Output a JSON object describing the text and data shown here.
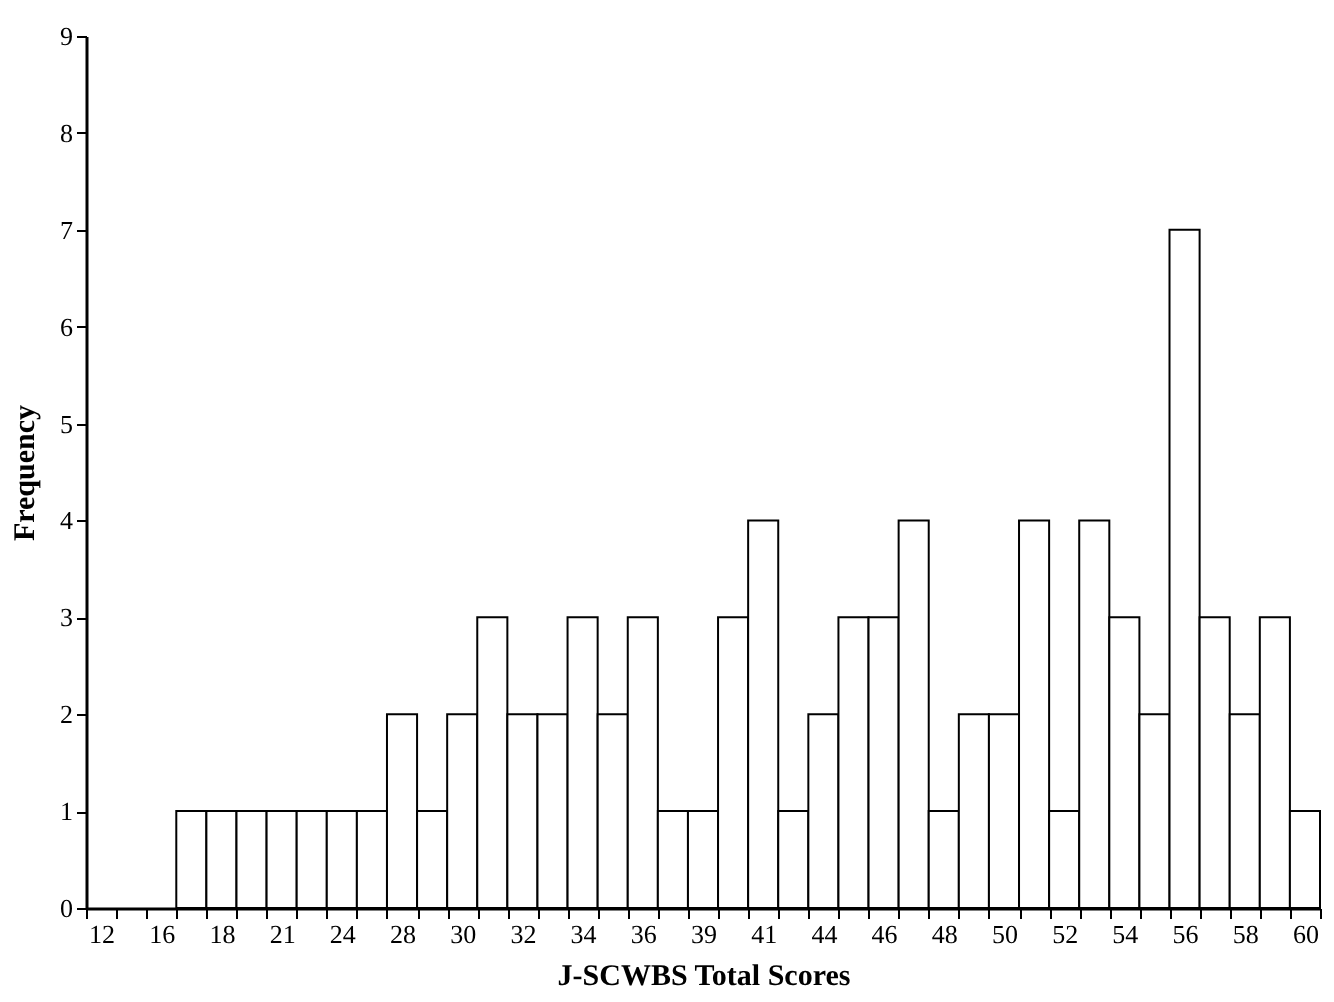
{
  "chart_data": {
    "type": "bar",
    "xlabel": "J-SCWBS Total Scores",
    "ylabel": "Frequency",
    "categories": [
      "12",
      null,
      "16",
      null,
      "18",
      null,
      "21",
      null,
      "24",
      null,
      "28",
      null,
      "30",
      null,
      "32",
      null,
      "34",
      null,
      "36",
      null,
      "39",
      null,
      "41",
      null,
      "44",
      null,
      "46",
      null,
      "48",
      null,
      "50",
      null,
      "52",
      null,
      "54",
      null,
      "56",
      null,
      "58",
      null,
      "60"
    ],
    "values": [
      0,
      0,
      0,
      1,
      1,
      1,
      1,
      1,
      1,
      1,
      2,
      1,
      2,
      3,
      2,
      2,
      3,
      2,
      3,
      1,
      1,
      3,
      4,
      1,
      2,
      3,
      3,
      4,
      1,
      2,
      2,
      4,
      1,
      4,
      3,
      2,
      7,
      3,
      2,
      3,
      1
    ],
    "color": "#ffffff",
    "ylim": [
      0,
      9
    ],
    "yticks": [
      0,
      1,
      2,
      3,
      4,
      5,
      6,
      7,
      8,
      9
    ],
    "grid": false
  }
}
